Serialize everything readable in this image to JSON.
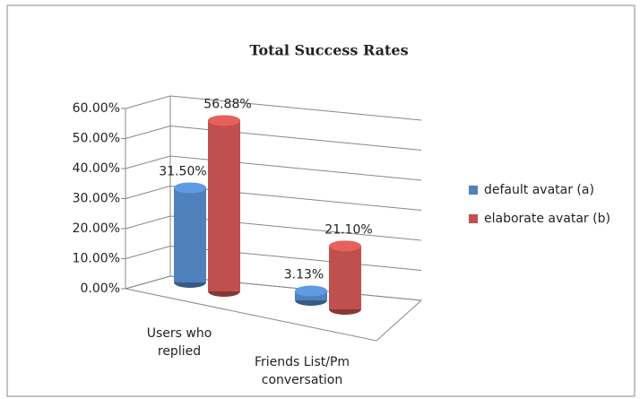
{
  "chart_data": {
    "type": "bar3d",
    "title": "Total Success Rates",
    "categories": [
      "Users who replied",
      "Friends List/Pm conversation"
    ],
    "series": [
      {
        "name": "default avatar (a)",
        "color": "#4f81bd",
        "values": [
          31.5,
          3.13
        ],
        "value_labels": [
          "31.50%",
          "3.13%"
        ]
      },
      {
        "name": "elaborate avatar (b)",
        "color": "#c0504d",
        "values": [
          56.88,
          21.1
        ],
        "value_labels": [
          "56.88%",
          "21.10%"
        ]
      }
    ],
    "ylim": [
      0,
      60
    ],
    "yticks": [
      {
        "value": 0,
        "label": "0.00%"
      },
      {
        "value": 10,
        "label": "10.00%"
      },
      {
        "value": 20,
        "label": "20.00%"
      },
      {
        "value": 30,
        "label": "30.00%"
      },
      {
        "value": 40,
        "label": "40.00%"
      },
      {
        "value": 50,
        "label": "50.00%"
      },
      {
        "value": 60,
        "label": "60.00%"
      }
    ],
    "grid": true,
    "legend": "right"
  }
}
